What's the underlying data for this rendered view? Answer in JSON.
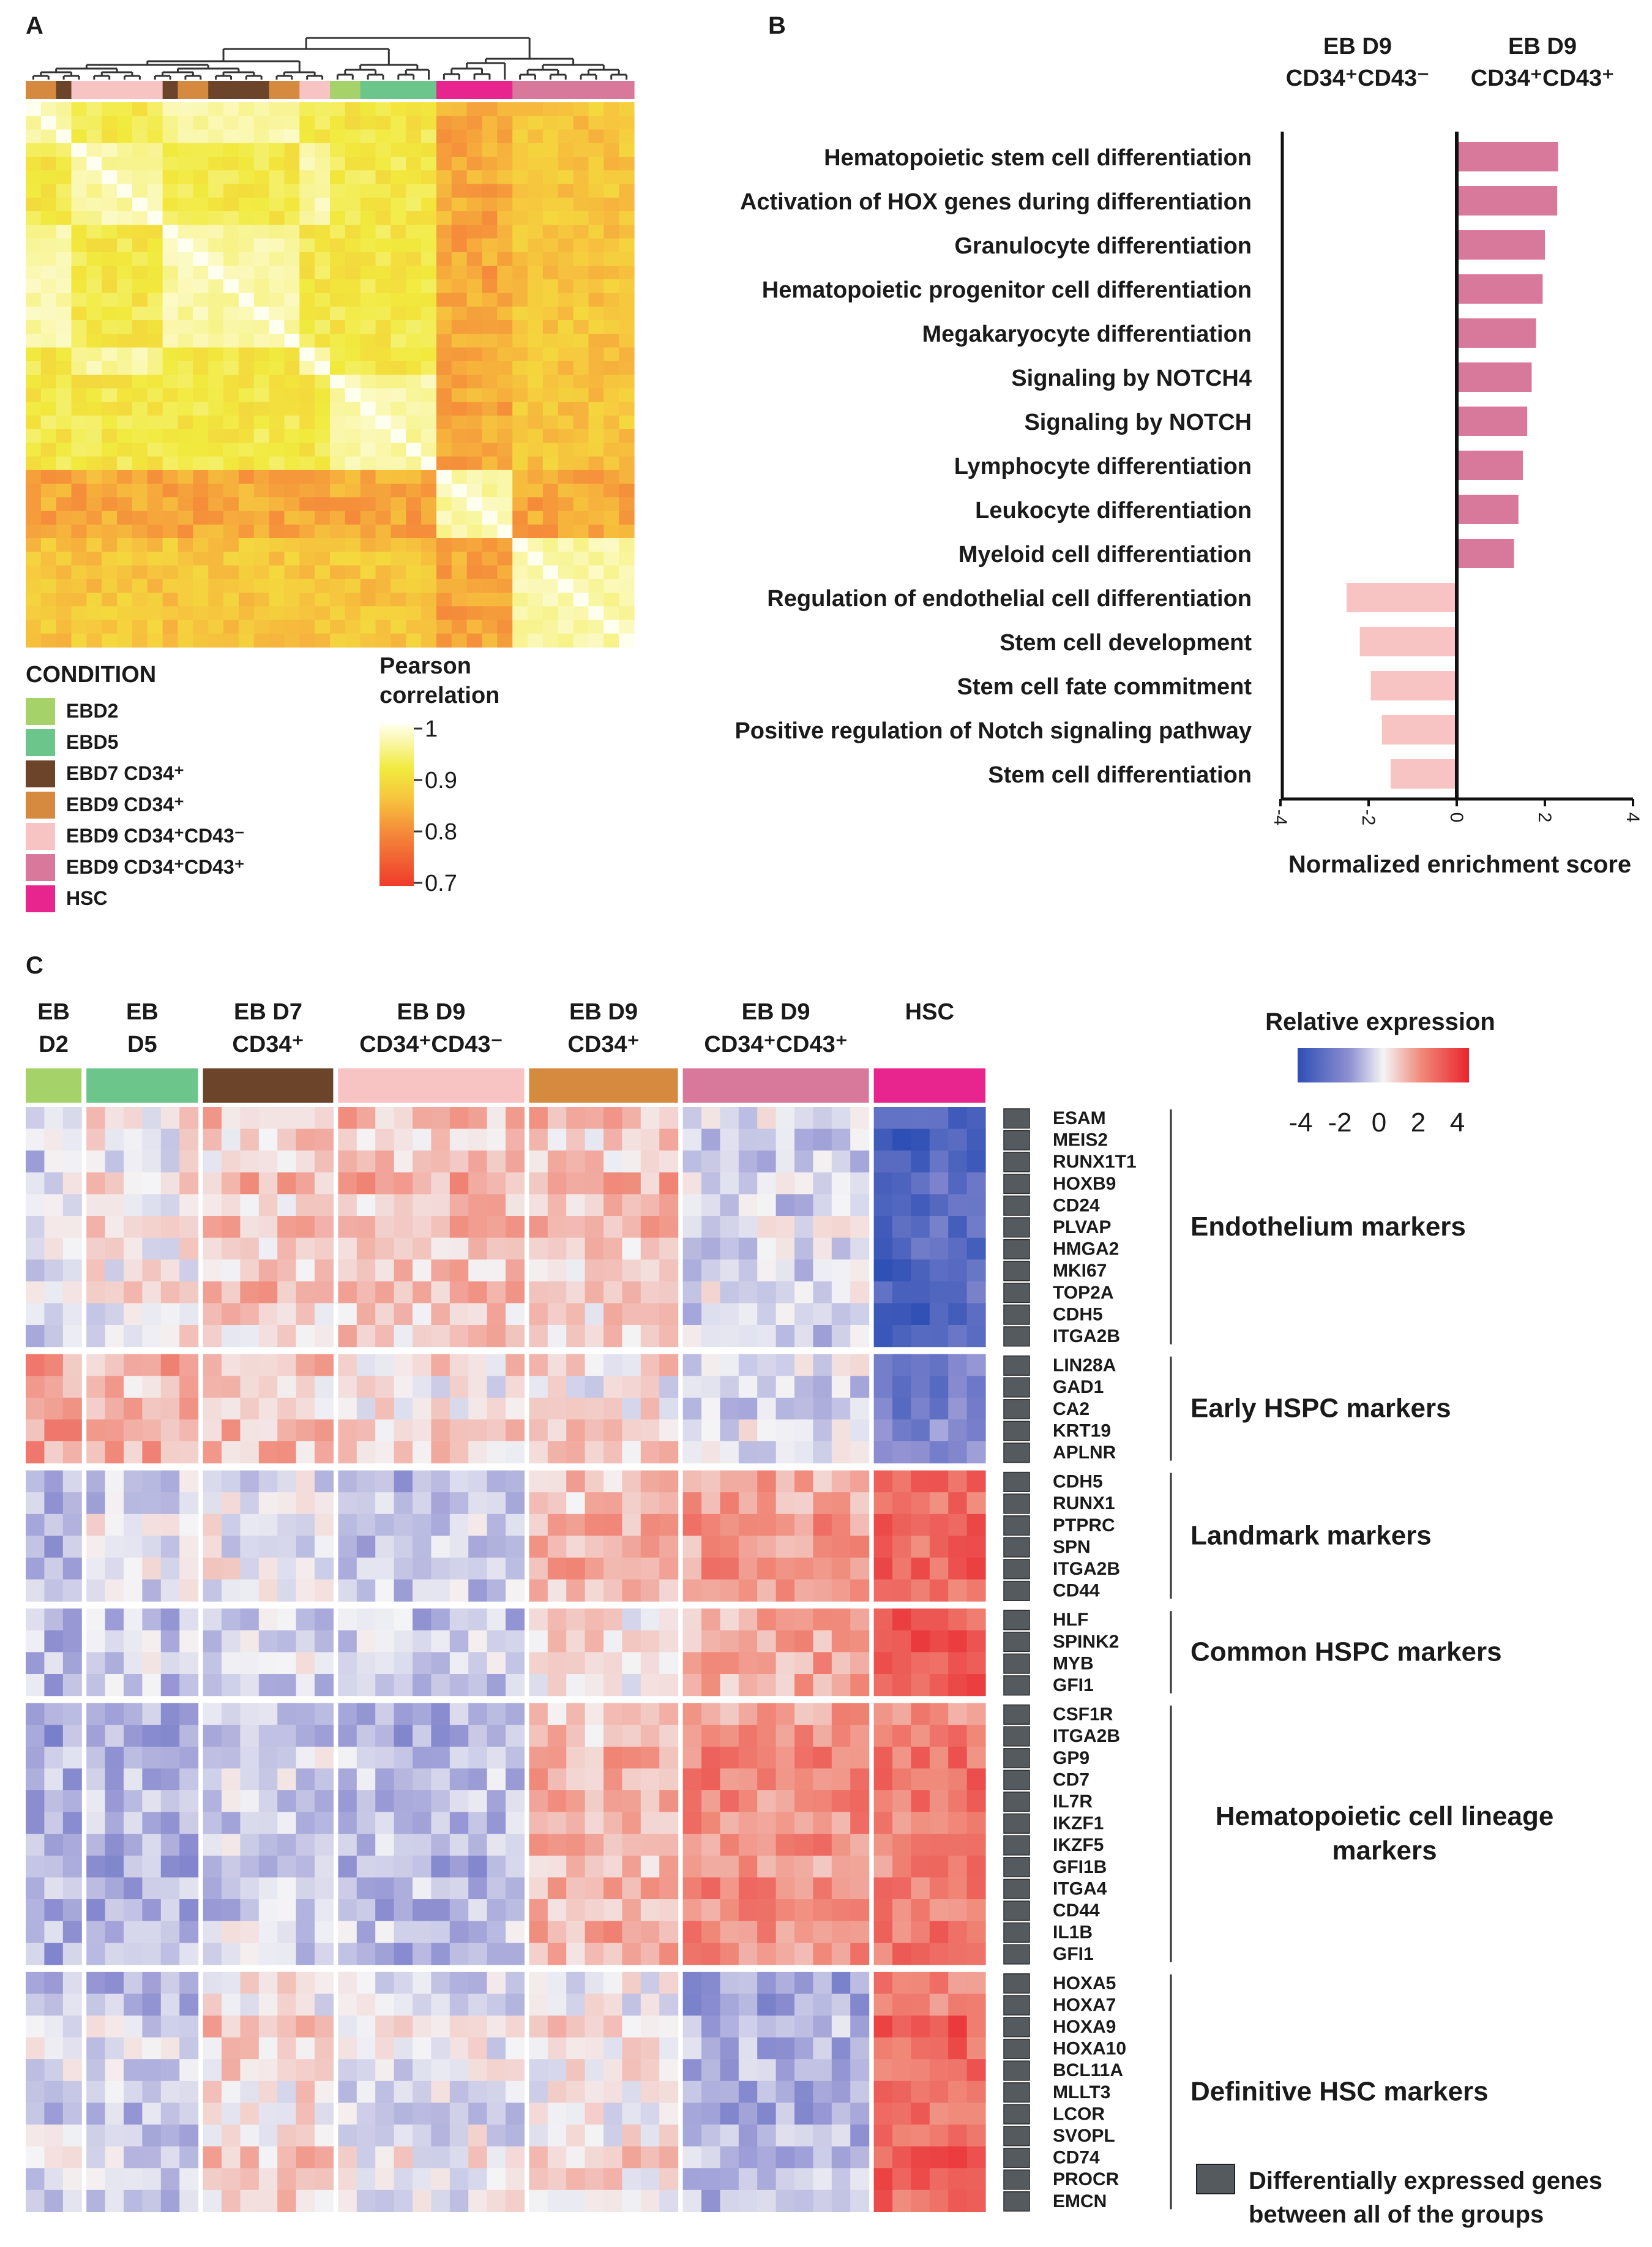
{
  "panels": {
    "a": "A",
    "b": "B",
    "c": "C"
  },
  "colors": {
    "EBD2": "#a6d26a",
    "EBD5": "#6cc58a",
    "EBD7": "#6b4429",
    "EBD9_34": "#d58a40",
    "EBD9_43neg": "#f7c3c3",
    "EBD9_43pos": "#d8799c",
    "HSC": "#e8248e",
    "deg_box": "#555a5e"
  },
  "chart_data": [
    {
      "type": "heatmap",
      "panel": "A",
      "name": "Pearson correlation matrix",
      "n": 40,
      "condition_bar": [
        "EBD9_34",
        "EBD9_34",
        "EBD7",
        "EBD9_43neg",
        "EBD9_43neg",
        "EBD9_43neg",
        "EBD9_43neg",
        "EBD9_43neg",
        "EBD9_43neg",
        "EBD7",
        "EBD9_34",
        "EBD9_34",
        "EBD7",
        "EBD7",
        "EBD7",
        "EBD7",
        "EBD9_34",
        "EBD9_34",
        "EBD9_43neg",
        "EBD9_43neg",
        "EBD2",
        "EBD2",
        "EBD5",
        "EBD5",
        "EBD5",
        "EBD5",
        "EBD5",
        "HSC",
        "HSC",
        "HSC",
        "HSC",
        "HSC",
        "EBD9_43pos",
        "EBD9_43pos",
        "EBD9_43pos",
        "EBD9_43pos",
        "EBD9_43pos",
        "EBD9_43pos",
        "EBD9_43pos",
        "EBD9_43pos"
      ],
      "colorscale": {
        "min": 0.7,
        "max": 1,
        "ticks": [
          "1",
          "0.9",
          "0.8",
          "0.7"
        ]
      },
      "legend_title": "CONDITION",
      "legend": [
        {
          "key": "EBD2",
          "label": "EBD2"
        },
        {
          "key": "EBD5",
          "label": "EBD5"
        },
        {
          "key": "EBD7",
          "label": "EBD7 CD34⁺"
        },
        {
          "key": "EBD9_34",
          "label": "EBD9 CD34⁺"
        },
        {
          "key": "EBD9_43neg",
          "label": "EBD9 CD34⁺CD43⁻"
        },
        {
          "key": "EBD9_43pos",
          "label": "EBD9 CD34⁺CD43⁺"
        },
        {
          "key": "HSC",
          "label": "HSC"
        }
      ],
      "scale_title_1": "Pearson",
      "scale_title_2": "correlation"
    },
    {
      "type": "bar",
      "panel": "B",
      "orientation": "horizontal",
      "col_left_1": "EB D9",
      "col_left_2": "CD34⁺CD43⁻",
      "col_right_1": "EB D9",
      "col_right_2": "CD34⁺CD43⁺",
      "categories": [
        "Hematopoietic stem cell differentiation",
        "Activation of HOX genes during differentiation",
        "Granulocyte differentiation",
        "Hematopoietic progenitor cell differentiation",
        "Megakaryocyte differentiation",
        "Signaling by NOTCH4",
        "Signaling by NOTCH",
        "Lymphocyte differentiation",
        "Leukocyte differentiation",
        "Myeloid cell differentiation",
        "Regulation of endothelial cell differentiation",
        "Stem cell development",
        "Stem cell fate commitment",
        "Positive regulation of Notch signaling pathway",
        "Stem cell differentiation"
      ],
      "values": [
        2.3,
        2.28,
        2.0,
        1.95,
        1.8,
        1.7,
        1.6,
        1.5,
        1.4,
        1.3,
        -2.5,
        -2.2,
        -1.95,
        -1.7,
        -1.5
      ],
      "xlim": [
        -4,
        4
      ],
      "xticks": [
        "-4",
        "-2",
        "0",
        "2",
        "4"
      ],
      "xlabel": "Normalized enrichment score"
    },
    {
      "type": "heatmap",
      "panel": "C",
      "colorbar_title": "Relative expression",
      "colorbar_ticks": [
        "-4",
        "-2",
        "0",
        "2",
        "4"
      ],
      "colorscale": {
        "min": -4,
        "max": 4
      },
      "columns": [
        {
          "key": "EBD2",
          "line1": "EB",
          "line2": "D2",
          "n": 3
        },
        {
          "key": "EBD5",
          "line1": "EB",
          "line2": "D5",
          "n": 6
        },
        {
          "key": "EBD7",
          "line1": "EB D7",
          "line2": "CD34⁺",
          "n": 7
        },
        {
          "key": "EBD9_43neg",
          "line1": "EB D9",
          "line2": "CD34⁺CD43⁻",
          "n": 10
        },
        {
          "key": "EBD9_34",
          "line1": "EB D9",
          "line2": "CD34⁺",
          "n": 8
        },
        {
          "key": "EBD9_43pos",
          "line1": "EB D9",
          "line2": "CD34⁺CD43⁺",
          "n": 10
        },
        {
          "key": "HSC",
          "line1": "HSC",
          "line2": "",
          "n": 6
        }
      ],
      "blocks": [
        {
          "label_lines": [
            "Endothelium markers"
          ],
          "genes": [
            "ESAM",
            "MEIS2",
            "RUNX1T1",
            "HOXB9",
            "CD24",
            "PLVAP",
            "HMGA2",
            "MKI67",
            "TOP2A",
            "CDH5",
            "ITGA2B"
          ],
          "mean": [
            -0.3,
            0.3,
            0.8,
            0.9,
            0.8,
            -0.4,
            -3.0
          ]
        },
        {
          "label_lines": [
            "Early HSPC markers"
          ],
          "genes": [
            "LIN28A",
            "GAD1",
            "CA2",
            "KRT19",
            "APLNR"
          ],
          "mean": [
            1.2,
            1.0,
            0.7,
            0.3,
            0.3,
            -0.4,
            -2.2
          ]
        },
        {
          "label_lines": [
            "Landmark markers"
          ],
          "genes": [
            "CDH5",
            "RUNX1",
            "PTPRC",
            "SPN",
            "ITGA2B",
            "CD44"
          ],
          "mean": [
            -1.0,
            -0.4,
            -0.2,
            -0.8,
            0.9,
            1.4,
            2.4
          ]
        },
        {
          "label_lines": [
            "Common HSPC markers"
          ],
          "genes": [
            "HLF",
            "SPINK2",
            "MYB",
            "GFI1"
          ],
          "mean": [
            -0.8,
            -0.6,
            -0.4,
            -0.6,
            0.4,
            1.2,
            3.0
          ]
        },
        {
          "label_lines": [
            "Hematopoietic cell lineage",
            "markers"
          ],
          "genes": [
            "CSF1R",
            "ITGA2B",
            "GP9",
            "CD7",
            "IL7R",
            "IKZF1",
            "IKZF5",
            "GFI1B",
            "ITGA4",
            "CD44",
            "IL1B",
            "GFI1"
          ],
          "mean": [
            -1.2,
            -1.0,
            -0.6,
            -0.9,
            1.0,
            1.7,
            2.1
          ]
        },
        {
          "label_lines": [
            "Definitive HSC markers"
          ],
          "genes": [
            "HOXA5",
            "HOXA7",
            "HOXA9",
            "HOXA10",
            "BCL11A",
            "MLLT3",
            "LCOR",
            "SVOPL",
            "CD74",
            "PROCR",
            "EMCN"
          ],
          "mean": [
            -0.4,
            -0.6,
            0.4,
            -0.2,
            0.2,
            -1.1,
            2.4
          ]
        }
      ],
      "deg_legend_1": "Differentially expressed genes",
      "deg_legend_2": "between all of the groups"
    }
  ]
}
